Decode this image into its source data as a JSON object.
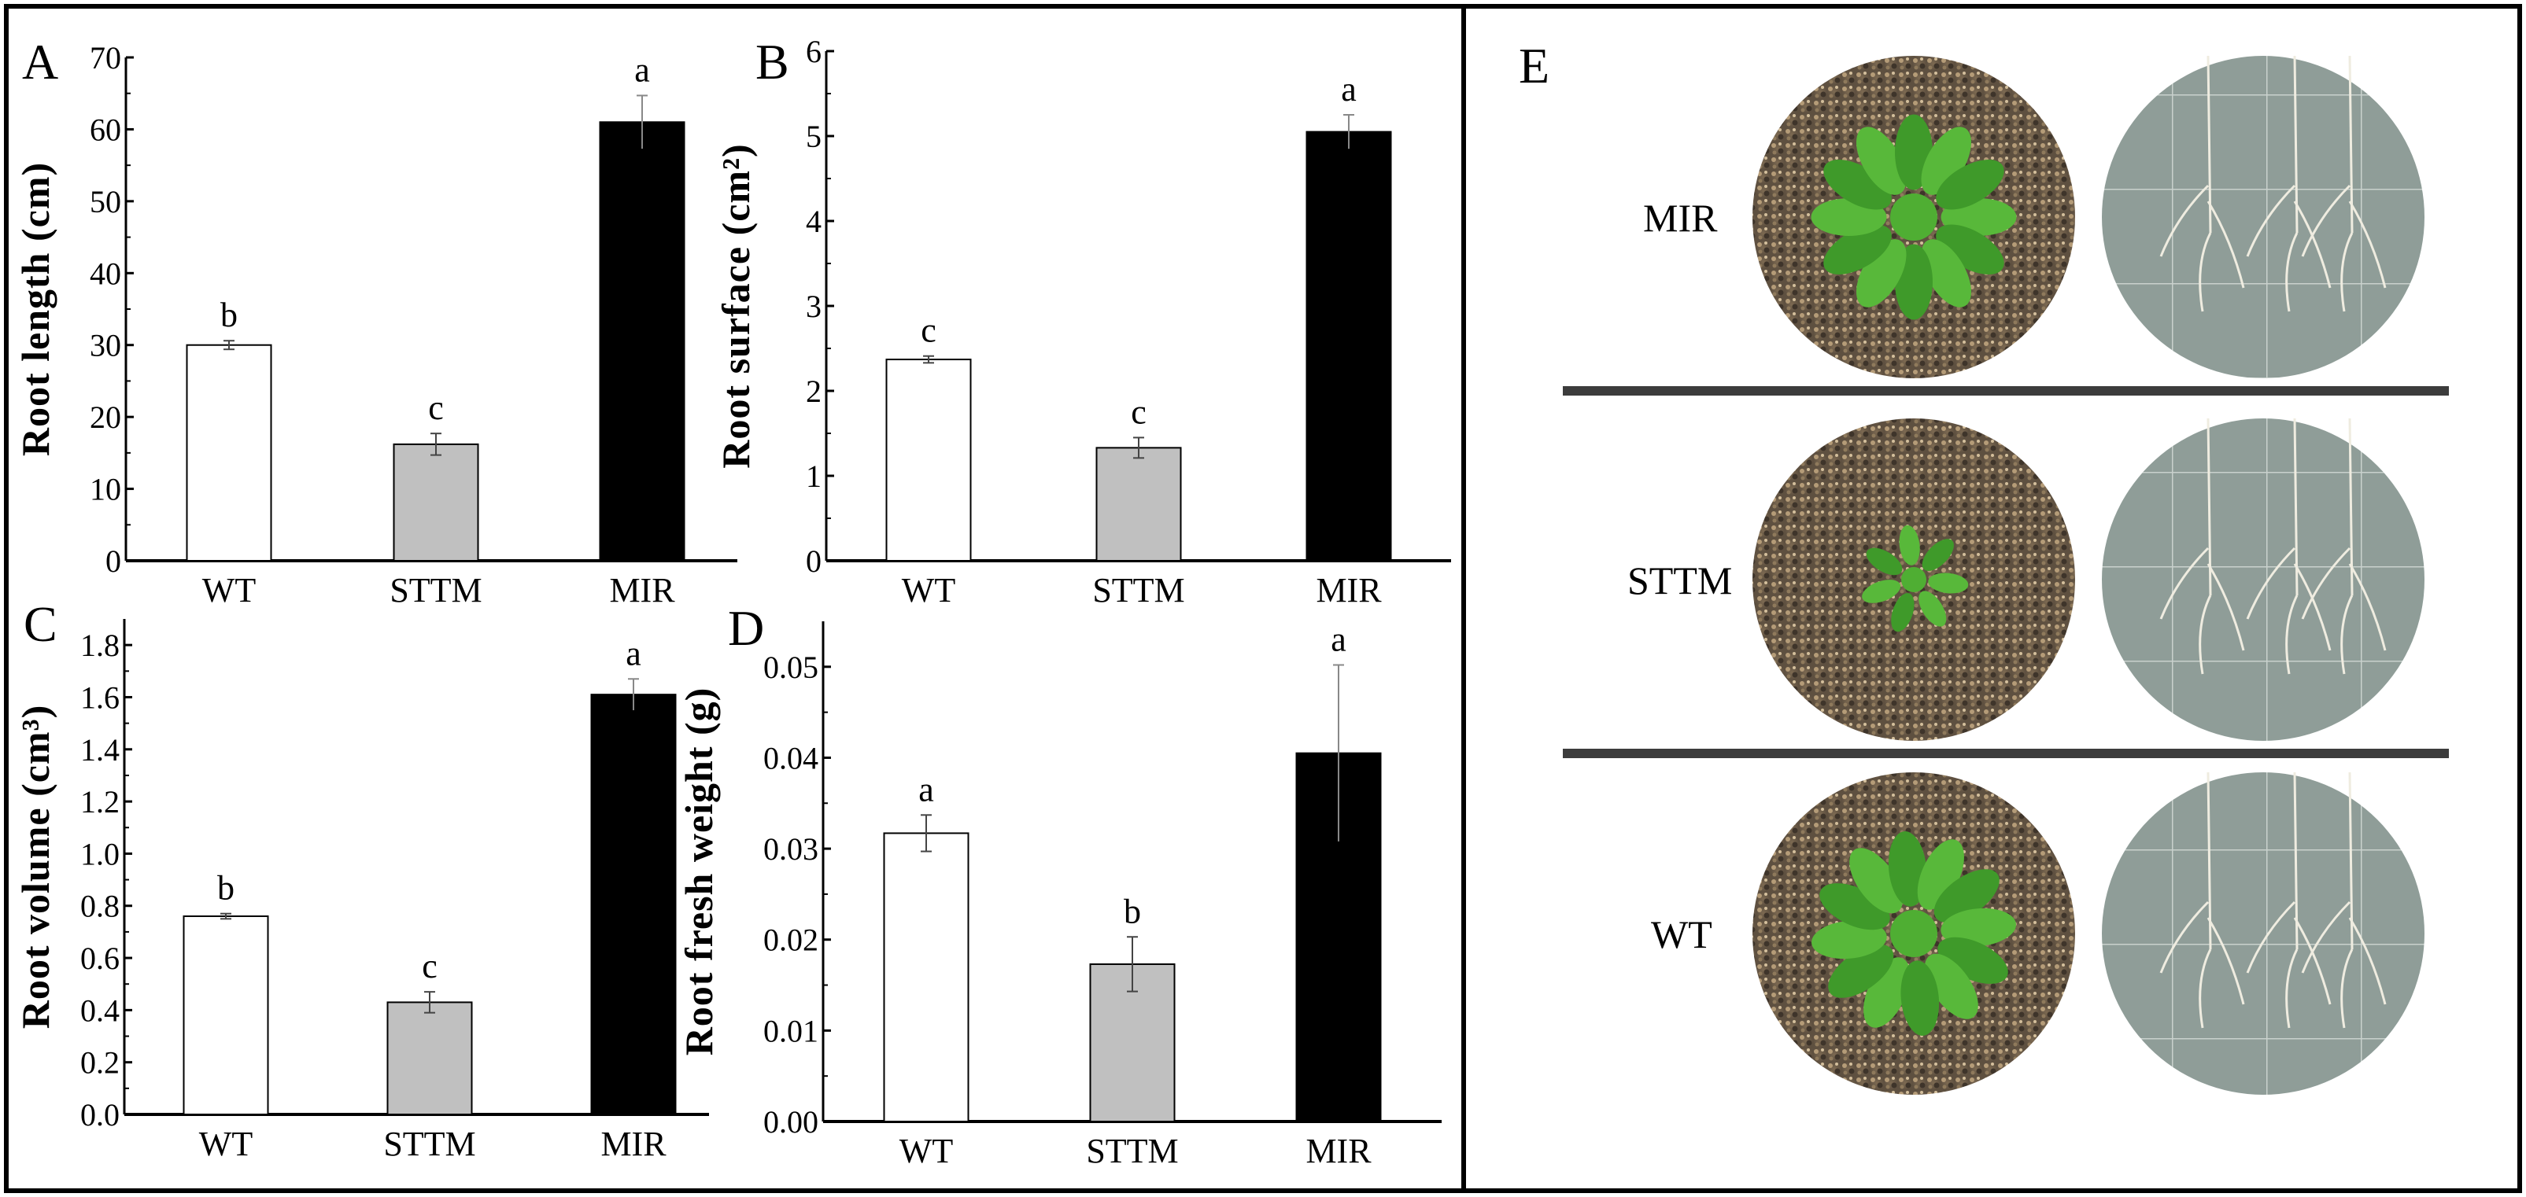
{
  "colors": {
    "WT": "#ffffff",
    "STTM": "#c0c0c0",
    "MIR": "#000000"
  },
  "chart_data": [
    {
      "panel": "A",
      "type": "bar",
      "categories": [
        "WT",
        "STTM",
        "MIR"
      ],
      "values": [
        30.0,
        16.2,
        61.0
      ],
      "errors": [
        0.6,
        1.5,
        3.7
      ],
      "significance": [
        "b",
        "c",
        "a"
      ],
      "ylabel": "Root length (cm)",
      "ylim": [
        0,
        70
      ],
      "yticks": [
        "0",
        "10",
        "20",
        "30",
        "40",
        "50",
        "60",
        "70"
      ],
      "ytick_values": [
        0,
        10,
        20,
        30,
        40,
        50,
        60,
        70
      ],
      "grid": false
    },
    {
      "panel": "B",
      "type": "bar",
      "categories": [
        "WT",
        "STTM",
        "MIR"
      ],
      "values": [
        2.37,
        1.33,
        5.05
      ],
      "errors": [
        0.04,
        0.12,
        0.2
      ],
      "significance": [
        "c",
        "c",
        "a"
      ],
      "ylabel": "Root surface (cm²)",
      "ylim": [
        0,
        6
      ],
      "yticks": [
        "0",
        "1",
        "2",
        "3",
        "4",
        "5",
        "6"
      ],
      "ytick_values": [
        0,
        1,
        2,
        3,
        4,
        5,
        6
      ],
      "grid": false
    },
    {
      "panel": "C",
      "type": "bar",
      "categories": [
        "WT",
        "STTM",
        "MIR"
      ],
      "values": [
        0.76,
        0.43,
        1.61
      ],
      "errors": [
        0.01,
        0.04,
        0.06
      ],
      "significance": [
        "b",
        "c",
        "a"
      ],
      "ylabel": "Root volume (cm³)",
      "ylim": [
        0,
        1.9
      ],
      "yticks": [
        "0.0",
        "0.2",
        "0.4",
        "0.6",
        "0.8",
        "1.0",
        "1.2",
        "1.4",
        "1.6",
        "1.8"
      ],
      "ytick_values": [
        0,
        0.2,
        0.4,
        0.6,
        0.8,
        1.0,
        1.2,
        1.4,
        1.6,
        1.8
      ],
      "grid": false
    },
    {
      "panel": "D",
      "type": "bar",
      "categories": [
        "WT",
        "STTM",
        "MIR"
      ],
      "values": [
        0.0317,
        0.0173,
        0.0405
      ],
      "errors": [
        0.002,
        0.003,
        0.0097
      ],
      "significance": [
        "a",
        "b",
        "a"
      ],
      "ylabel": "Root fresh weight (g)",
      "ylim": [
        0,
        0.055
      ],
      "yticks": [
        "0.00",
        "0.01",
        "0.02",
        "0.03",
        "0.04",
        "0.05"
      ],
      "ytick_values": [
        0,
        0.01,
        0.02,
        0.03,
        0.04,
        0.05
      ],
      "grid": false
    }
  ],
  "panel_e": {
    "label": "E",
    "rows": [
      {
        "label": "MIR"
      },
      {
        "label": "STTM"
      },
      {
        "label": "WT"
      }
    ]
  }
}
